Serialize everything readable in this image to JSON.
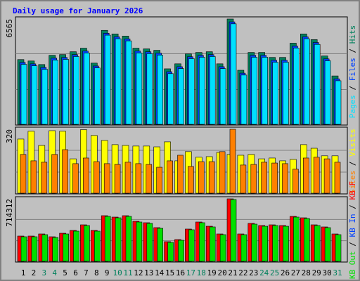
{
  "chart_data": [
    {
      "type": "bar",
      "title": "Daily usage for January 2026",
      "ylim": [
        0,
        6565
      ],
      "yticks": [
        6565
      ],
      "legend_separator": " / ",
      "series": [
        {
          "name": "Hits",
          "color": "#00805c",
          "values": [
            4037,
            3948,
            3726,
            4303,
            4347,
            4525,
            4746,
            3815,
            5855,
            5634,
            5501,
            4746,
            4702,
            4613,
            3460,
            3771,
            4392,
            4480,
            4525,
            3771,
            6565,
            3371,
            4480,
            4480,
            4170,
            4170,
            5057,
            5634,
            5279,
            4259,
            3016
          ]
        },
        {
          "name": "Files",
          "color": "#0040ff",
          "values": [
            3857,
            3768,
            3546,
            4123,
            4167,
            4345,
            4566,
            3635,
            5675,
            5454,
            5321,
            4566,
            4522,
            4433,
            3280,
            3591,
            4212,
            4300,
            4345,
            3591,
            6385,
            3191,
            4300,
            4300,
            3990,
            3990,
            4877,
            5454,
            5099,
            4079,
            2836
          ]
        },
        {
          "name": "Pages",
          "color": "#00e0ff",
          "values": [
            3737,
            3648,
            3426,
            4003,
            4047,
            4225,
            4446,
            3515,
            5555,
            5334,
            5201,
            4446,
            4402,
            4313,
            3160,
            3471,
            4092,
            4180,
            4225,
            3471,
            6265,
            3071,
            4180,
            4180,
            3870,
            3870,
            4757,
            5334,
            4979,
            3959,
            2716
          ]
        }
      ]
    },
    {
      "type": "bar",
      "ylim": [
        0,
        320
      ],
      "yticks": [
        320
      ],
      "legend_separator": " / ",
      "series": [
        {
          "name": "Visits",
          "color": "#ffff00",
          "values": [
            271,
            310,
            239,
            313,
            310,
            172,
            318,
            289,
            264,
            243,
            239,
            236,
            236,
            232,
            257,
            162,
            208,
            180,
            183,
            204,
            194,
            190,
            194,
            172,
            176,
            162,
            169,
            243,
            225,
            187,
            187
          ]
        },
        {
          "name": "Sites",
          "color": "#ff8000",
          "values": [
            194,
            162,
            155,
            194,
            218,
            148,
            176,
            158,
            148,
            144,
            155,
            148,
            144,
            130,
            162,
            190,
            134,
            158,
            158,
            208,
            320,
            141,
            144,
            155,
            151,
            148,
            120,
            176,
            180,
            172,
            155
          ]
        }
      ]
    },
    {
      "type": "bar",
      "ylim": [
        0,
        714312
      ],
      "yticks": [
        714312
      ],
      "legend_separator": " / ",
      "categories": [
        "1",
        "2",
        "3",
        "4",
        "5",
        "6",
        "7",
        "8",
        "9",
        "10",
        "11",
        "12",
        "13",
        "14",
        "15",
        "16",
        "17",
        "18",
        "19",
        "20",
        "21",
        "22",
        "23",
        "24",
        "25",
        "26",
        "27",
        "28",
        "29",
        "30",
        "31"
      ],
      "category_colors": [
        "#000000",
        "#000000",
        "#00805c",
        "#00805c",
        "#000000",
        "#000000",
        "#000000",
        "#000000",
        "#000000",
        "#00805c",
        "#00805c",
        "#000000",
        "#000000",
        "#000000",
        "#000000",
        "#000000",
        "#00805c",
        "#00805c",
        "#000000",
        "#000000",
        "#000000",
        "#000000",
        "#000000",
        "#00805c",
        "#00805c",
        "#000000",
        "#000000",
        "#000000",
        "#000000",
        "#000000",
        "#00805c"
      ],
      "series": [
        {
          "name": "KB F",
          "color": "#ff0000",
          "values": [
            288936,
            288936,
            313014,
            280910,
            321040,
            353144,
            417352,
            353144,
            521690,
            505638,
            521690,
            457482,
            441430,
            385248,
            224728,
            248806,
            369196,
            449456,
            401300,
            313014,
            714312,
            313014,
            433404,
            409326,
            417352,
            409326,
            513664,
            497612,
            417352,
            393274,
            313014
          ]
        },
        {
          "name": "KB In",
          "color": "#0040ff",
          "values": [
            0,
            0,
            0,
            0,
            0,
            0,
            0,
            0,
            0,
            0,
            0,
            0,
            0,
            0,
            0,
            0,
            0,
            0,
            0,
            0,
            0,
            0,
            0,
            0,
            0,
            0,
            0,
            0,
            0,
            0,
            0
          ]
        },
        {
          "name": "KB Out",
          "color": "#00e000",
          "values": [
            280910,
            280910,
            304988,
            272884,
            313014,
            345118,
            409326,
            345118,
            513664,
            497612,
            513664,
            449456,
            433404,
            377222,
            216702,
            240780,
            361170,
            441430,
            393274,
            304988,
            706286,
            304988,
            425378,
            401300,
            409326,
            401300,
            505638,
            489586,
            409326,
            385248,
            304988
          ]
        }
      ]
    }
  ]
}
